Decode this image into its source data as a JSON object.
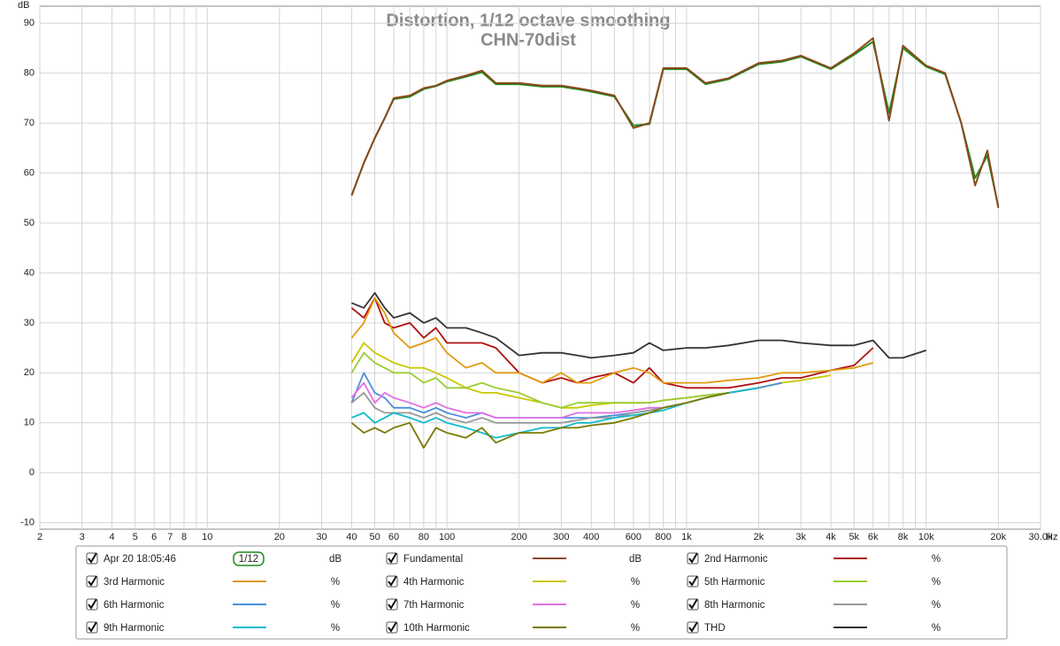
{
  "chart_data": {
    "type": "line",
    "title": "Distortion, 1/12 octave smoothing",
    "subtitle": "CHN-70dist",
    "y_label": "dB",
    "x_label": "Hz",
    "log_x": true,
    "grid": true,
    "xlim": [
      2,
      30000
    ],
    "ylim": [
      -11.3,
      93.4
    ],
    "yticks": [
      -10,
      0,
      10,
      20,
      30,
      40,
      50,
      60,
      70,
      80,
      90
    ],
    "xticks": [
      2,
      3,
      4,
      5,
      6,
      7,
      8,
      10,
      20,
      30,
      40,
      50,
      60,
      80,
      100,
      200,
      300,
      400,
      600,
      800,
      {
        "value": 1000,
        "label": "1k"
      },
      {
        "value": 2000,
        "label": "2k"
      },
      {
        "value": 3000,
        "label": "3k"
      },
      {
        "value": 4000,
        "label": "4k"
      },
      {
        "value": 5000,
        "label": "5k"
      },
      {
        "value": 6000,
        "label": "6k"
      },
      {
        "value": 8000,
        "label": "8k"
      },
      {
        "value": 10000,
        "label": "10k"
      },
      {
        "value": 20000,
        "label": "20k"
      },
      {
        "value": 30000,
        "label": "30.0k"
      }
    ],
    "x_minor_ticks": [
      9,
      70,
      90,
      500,
      700,
      900,
      7000,
      9000
    ],
    "x": [
      40,
      45,
      50,
      55,
      60,
      70,
      80,
      90,
      100,
      120,
      140,
      160,
      200,
      250,
      300,
      350,
      400,
      500,
      600,
      700,
      800,
      1000,
      1200,
      1500,
      2000,
      2500,
      3000,
      4000,
      5000,
      6000,
      7000,
      8000,
      10000,
      12000,
      14000,
      16000,
      18000,
      20000
    ],
    "series": [
      {
        "name": "Apr 20 18:05:46",
        "smoothing": "1/12",
        "unit": "dB",
        "color": "#1a8a1a",
        "values": [
          55.5,
          62,
          67,
          71,
          74.8,
          75.3,
          76.8,
          77.4,
          78.3,
          79.3,
          80.2,
          77.8,
          77.8,
          77.3,
          77.3,
          76.8,
          76.3,
          75.3,
          69.5,
          69.8,
          80.8,
          80.8,
          77.8,
          78.8,
          81.8,
          82.3,
          83.3,
          80.8,
          83.7,
          86.3,
          72,
          85,
          81.3,
          79.8,
          70,
          59,
          63.5,
          53.3
        ]
      },
      {
        "name": "Fundamental",
        "unit": "dB",
        "color": "#8a4a1e",
        "values": [
          55.5,
          62,
          67,
          71,
          75,
          75.5,
          77,
          77.5,
          78.5,
          79.5,
          80.5,
          78,
          78,
          77.5,
          77.5,
          77,
          76.5,
          75.5,
          69,
          70,
          81,
          81,
          78,
          79,
          82,
          82.5,
          83.5,
          81,
          84,
          87,
          70.5,
          85.5,
          81.5,
          80,
          70,
          57.5,
          64.5,
          53
        ]
      },
      {
        "name": "2nd Harmonic",
        "unit": "%",
        "color": "#b01010",
        "values": [
          33,
          31,
          35,
          30,
          29,
          30,
          27,
          29,
          26,
          26,
          26,
          25,
          20,
          18,
          19,
          18,
          19,
          20,
          18,
          21,
          18,
          17,
          17,
          17,
          18,
          19,
          19,
          20.5,
          21.5,
          25,
          null,
          null,
          null,
          null,
          null,
          null,
          null,
          null
        ]
      },
      {
        "name": "3rd Harmonic",
        "unit": "%",
        "color": "#e09a10",
        "values": [
          27,
          30,
          35,
          32,
          28,
          25,
          26,
          27,
          24,
          21,
          22,
          20,
          20,
          18,
          20,
          18,
          18,
          20,
          21,
          20,
          18,
          18,
          18,
          18.5,
          19,
          20,
          20,
          20.5,
          21,
          22,
          null,
          null,
          null,
          null,
          null,
          null,
          null,
          null
        ]
      },
      {
        "name": "4th Harmonic",
        "unit": "%",
        "color": "#c8c800",
        "values": [
          22,
          26,
          24,
          23,
          22,
          21,
          21,
          20,
          19,
          17,
          16,
          16,
          15,
          14,
          13,
          13,
          13.5,
          14,
          14,
          14,
          14.5,
          15,
          15.5,
          16,
          17,
          18,
          18.5,
          19.5,
          null,
          null,
          null,
          null,
          null,
          null,
          null,
          null,
          null,
          null
        ]
      },
      {
        "name": "5th Harmonic",
        "unit": "%",
        "color": "#99cc33",
        "values": [
          20,
          24,
          22,
          21,
          20,
          20,
          18,
          19,
          17,
          17,
          18,
          17,
          16,
          14,
          13,
          14,
          14,
          14,
          14,
          14,
          14.5,
          15,
          15.5,
          16,
          17,
          18,
          null,
          null,
          null,
          null,
          null,
          null,
          null,
          null,
          null,
          null,
          null,
          null
        ]
      },
      {
        "name": "6th Harmonic",
        "unit": "%",
        "color": "#4a90d9",
        "values": [
          14,
          20,
          16,
          15,
          13,
          13,
          12,
          13,
          12,
          11,
          12,
          11,
          11,
          11,
          11,
          11,
          11,
          11.5,
          12,
          12.5,
          13,
          14,
          15,
          16,
          17,
          18,
          null,
          null,
          null,
          null,
          null,
          null,
          null,
          null,
          null,
          null,
          null,
          null
        ]
      },
      {
        "name": "7th Harmonic",
        "unit": "%",
        "color": "#e070e0",
        "values": [
          15,
          18,
          14,
          16,
          15,
          14,
          13,
          14,
          13,
          12,
          12,
          11,
          11,
          11,
          11,
          12,
          12,
          12,
          12.5,
          13,
          13,
          14,
          15,
          16,
          17,
          null,
          null,
          null,
          null,
          null,
          null,
          null,
          null,
          null,
          null,
          null,
          null,
          null
        ]
      },
      {
        "name": "8th Harmonic",
        "unit": "%",
        "color": "#999999",
        "values": [
          14,
          16,
          13,
          12,
          12,
          12,
          11,
          12,
          11,
          10,
          11,
          10,
          10,
          10,
          10,
          10.5,
          11,
          11,
          12,
          12.5,
          13,
          14,
          15,
          16,
          17,
          null,
          null,
          null,
          null,
          null,
          null,
          null,
          null,
          null,
          null,
          null,
          null,
          null
        ]
      },
      {
        "name": "9th Harmonic",
        "unit": "%",
        "color": "#11bbcc",
        "values": [
          11,
          12,
          10,
          11,
          12,
          11,
          10,
          11,
          10,
          9,
          8,
          7,
          8,
          9,
          9,
          10,
          10,
          11,
          11.5,
          12,
          12.5,
          14,
          15,
          16,
          17,
          null,
          null,
          null,
          null,
          null,
          null,
          null,
          null,
          null,
          null,
          null,
          null,
          null
        ]
      },
      {
        "name": "10th Harmonic",
        "unit": "%",
        "color": "#7a7a00",
        "values": [
          10,
          8,
          9,
          8,
          9,
          10,
          5,
          9,
          8,
          7,
          9,
          6,
          8,
          8,
          9,
          9,
          9.5,
          10,
          11,
          12,
          13,
          14,
          15,
          16,
          null,
          null,
          null,
          null,
          null,
          null,
          null,
          null,
          null,
          null,
          null,
          null,
          null,
          null
        ]
      },
      {
        "name": "THD",
        "unit": "%",
        "color": "#333333",
        "values": [
          34,
          33,
          36,
          33,
          31,
          32,
          30,
          31,
          29,
          29,
          28,
          27,
          23.5,
          24,
          24,
          23.5,
          23,
          23.5,
          24,
          26,
          24.5,
          25,
          25,
          25.5,
          26.5,
          26.5,
          26,
          25.5,
          25.5,
          26.5,
          23,
          23,
          24.5,
          null,
          null,
          null,
          null,
          null
        ]
      }
    ]
  }
}
